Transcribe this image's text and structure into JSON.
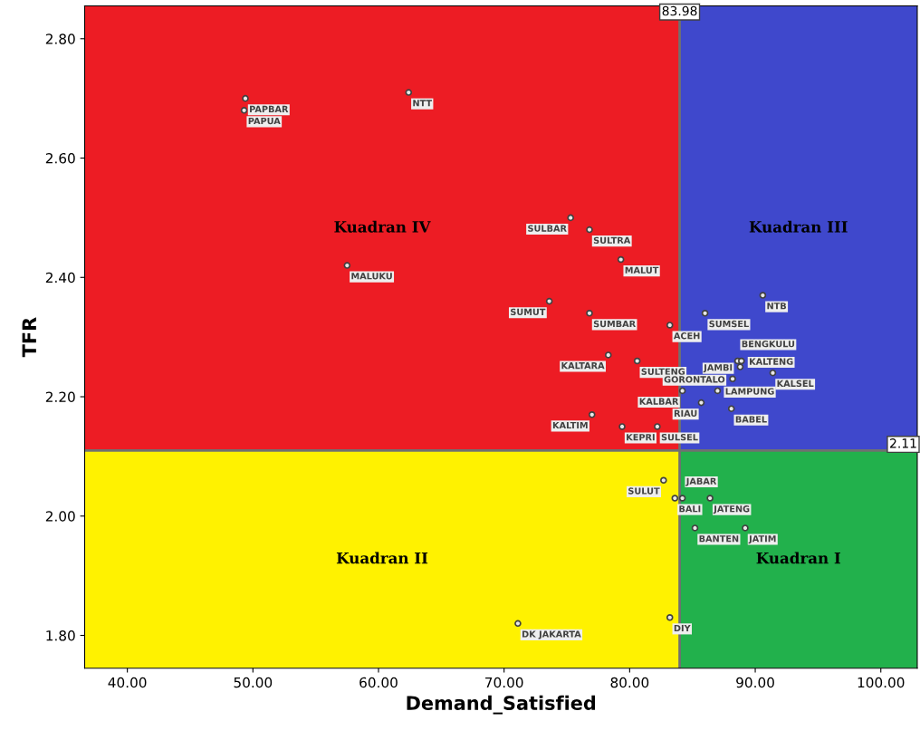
{
  "chart_data": {
    "type": "scatter",
    "xlabel": "Demand_Satisfied",
    "ylabel": "TFR",
    "xlim": [
      36.6,
      102.9
    ],
    "ylim": [
      1.745,
      2.855
    ],
    "xticks": [
      {
        "value": 40,
        "label": "40.00"
      },
      {
        "value": 50,
        "label": "50.00"
      },
      {
        "value": 60,
        "label": "60.00"
      },
      {
        "value": 70,
        "label": "70.00"
      },
      {
        "value": 80,
        "label": "80.00"
      },
      {
        "value": 90,
        "label": "90.00"
      },
      {
        "value": 100,
        "label": "100.00"
      }
    ],
    "yticks": [
      {
        "value": 1.8,
        "label": "1.80"
      },
      {
        "value": 2.0,
        "label": "2.00"
      },
      {
        "value": 2.2,
        "label": "2.20"
      },
      {
        "value": 2.4,
        "label": "2.40"
      },
      {
        "value": 2.6,
        "label": "2.60"
      },
      {
        "value": 2.8,
        "label": "2.80"
      }
    ],
    "grid": false,
    "marker": "circle",
    "x": [
      49.4,
      49.3,
      62.4,
      57.5,
      75.3,
      76.8,
      79.3,
      73.6,
      76.8,
      83.2,
      86.0,
      90.6,
      78.3,
      80.6,
      88.6,
      88.9,
      88.8,
      91.4,
      88.2,
      87.0,
      84.2,
      85.7,
      88.1,
      77.0,
      79.4,
      82.2,
      82.7,
      83.6,
      84.2,
      86.4,
      85.2,
      89.2,
      83.2,
      71.1
    ],
    "series": [
      {
        "color": "#404040",
        "values": [
          2.7,
          2.68,
          2.71,
          2.42,
          2.5,
          2.48,
          2.43,
          2.36,
          2.34,
          2.32,
          2.34,
          2.37,
          2.27,
          2.26,
          2.26,
          2.26,
          2.25,
          2.24,
          2.23,
          2.21,
          2.21,
          2.19,
          2.18,
          2.17,
          2.15,
          2.15,
          2.06,
          2.03,
          2.03,
          2.03,
          1.98,
          1.98,
          1.83,
          1.82
        ]
      }
    ],
    "colors": [
      "#ed1c24",
      "#3f48cc",
      "#fff200",
      "#22b14c"
    ],
    "ref_lines": [
      {
        "axis": "x",
        "value": 83.98,
        "label": "83.98",
        "color": "#707070"
      },
      {
        "axis": "y",
        "value": 2.11,
        "label": "2.11",
        "color": "#707070"
      }
    ],
    "annotations": [
      "Kuadran IV",
      "Kuadran III",
      "Kuadran II",
      "Kuadran I",
      {
        "text": "PAPBAR",
        "x": 49.4,
        "y": 2.7
      },
      {
        "text": "PAPUA",
        "x": 49.3,
        "y": 2.68
      },
      {
        "text": "NTT",
        "x": 62.4,
        "y": 2.71
      },
      {
        "text": "MALUKU",
        "x": 57.5,
        "y": 2.42
      },
      {
        "text": "SULBAR",
        "x": 75.3,
        "y": 2.5
      },
      {
        "text": "SULTRA",
        "x": 76.8,
        "y": 2.48
      },
      {
        "text": "MALUT",
        "x": 79.3,
        "y": 2.43
      },
      {
        "text": "SUMUT",
        "x": 73.6,
        "y": 2.36
      },
      {
        "text": "SUMBAR",
        "x": 76.8,
        "y": 2.34
      },
      {
        "text": "ACEH",
        "x": 83.2,
        "y": 2.32
      },
      {
        "text": "SUMSEL",
        "x": 86.0,
        "y": 2.34
      },
      {
        "text": "NTB",
        "x": 90.6,
        "y": 2.37
      },
      {
        "text": "KALTARA",
        "x": 78.3,
        "y": 2.27
      },
      {
        "text": "SULTENG",
        "x": 80.6,
        "y": 2.26
      },
      {
        "text": "BENGKULU",
        "x": 88.6,
        "y": 2.26
      },
      {
        "text": "KALTENG",
        "x": 88.9,
        "y": 2.26
      },
      {
        "text": "JAMBI",
        "x": 88.8,
        "y": 2.25
      },
      {
        "text": "KALSEL",
        "x": 91.4,
        "y": 2.24
      },
      {
        "text": "GORONTALO",
        "x": 88.2,
        "y": 2.23
      },
      {
        "text": "LAMPUNG",
        "x": 87.0,
        "y": 2.21
      },
      {
        "text": "KALBAR",
        "x": 84.2,
        "y": 2.21
      },
      {
        "text": "RIAU",
        "x": 85.7,
        "y": 2.19
      },
      {
        "text": "BABEL",
        "x": 88.1,
        "y": 2.18
      },
      {
        "text": "KALTIM",
        "x": 77.0,
        "y": 2.17
      },
      {
        "text": "KEPRI",
        "x": 79.4,
        "y": 2.15
      },
      {
        "text": "SULSEL",
        "x": 82.2,
        "y": 2.15
      },
      {
        "text": "SULUT",
        "x": 82.7,
        "y": 2.06
      },
      {
        "text": "BALI",
        "x": 83.6,
        "y": 2.03
      },
      {
        "text": "JABAR",
        "x": 84.2,
        "y": 2.03
      },
      {
        "text": "JATENG",
        "x": 86.4,
        "y": 2.03
      },
      {
        "text": "BANTEN",
        "x": 85.2,
        "y": 1.98
      },
      {
        "text": "JATIM",
        "x": 89.2,
        "y": 1.98
      },
      {
        "text": "DIY",
        "x": 83.2,
        "y": 1.83
      },
      {
        "text": "DK JAKARTA",
        "x": 71.1,
        "y": 1.82
      }
    ]
  }
}
